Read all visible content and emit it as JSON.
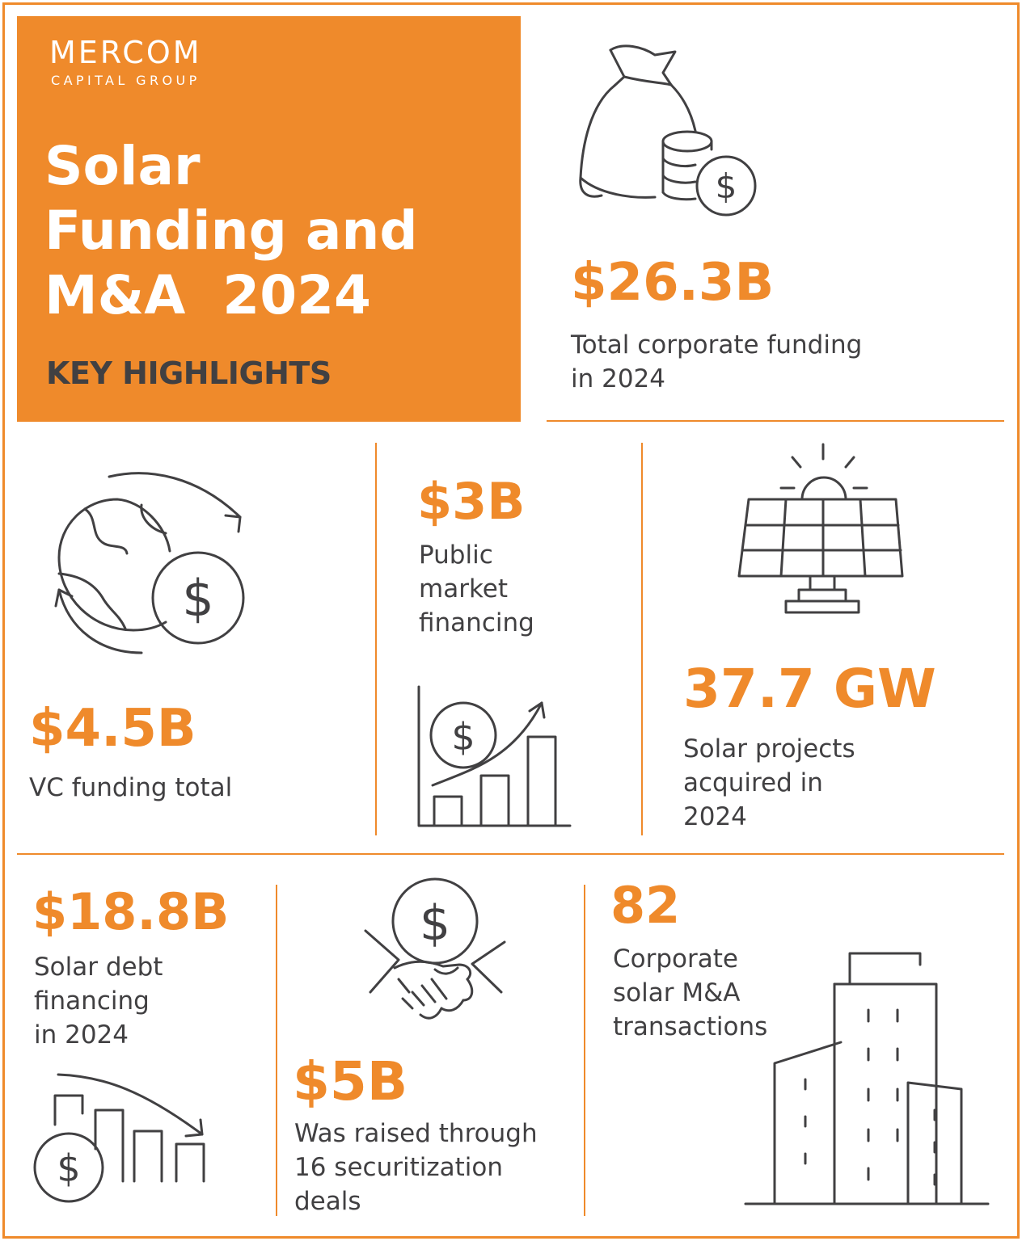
{
  "brand": {
    "name": "MERCOM",
    "tagline": "CAPITAL GROUP",
    "accent_color": "#ef8a2b",
    "text_color": "#414042"
  },
  "hero": {
    "title_lines": [
      "Solar",
      "Funding and",
      "M&A  2024"
    ],
    "subtitle": "KEY HIGHLIGHTS"
  },
  "stats": {
    "total_corporate": {
      "value": "$26.3B",
      "desc_lines": [
        "Total corporate funding",
        "in 2024"
      ],
      "icon": "money-bag-coins-icon"
    },
    "vc_funding": {
      "value": "$4.5B",
      "desc_lines": [
        "VC funding total"
      ],
      "icon": "globe-dollar-cycle-icon"
    },
    "public_market": {
      "value": "$3B",
      "desc_lines": [
        "Public",
        "market",
        "financing"
      ],
      "icon": "rising-bar-chart-dollar-icon"
    },
    "projects_acquired": {
      "value": "37.7 GW",
      "desc_lines": [
        "Solar projects",
        "acquired in",
        "2024"
      ],
      "icon": "solar-panel-sun-icon"
    },
    "debt_financing": {
      "value": "$18.8B",
      "desc_lines": [
        "Solar debt",
        "financing",
        "in 2024"
      ],
      "icon": "declining-bars-dollar-icon"
    },
    "securitization": {
      "value": "$5B",
      "desc_lines": [
        "Was raised through",
        "16 securitization",
        "deals"
      ],
      "icon": "handshake-dollar-icon"
    },
    "ma_transactions": {
      "value": "82",
      "desc_lines": [
        "Corporate",
        "solar M&A",
        "transactions"
      ],
      "icon": "office-buildings-icon"
    }
  }
}
